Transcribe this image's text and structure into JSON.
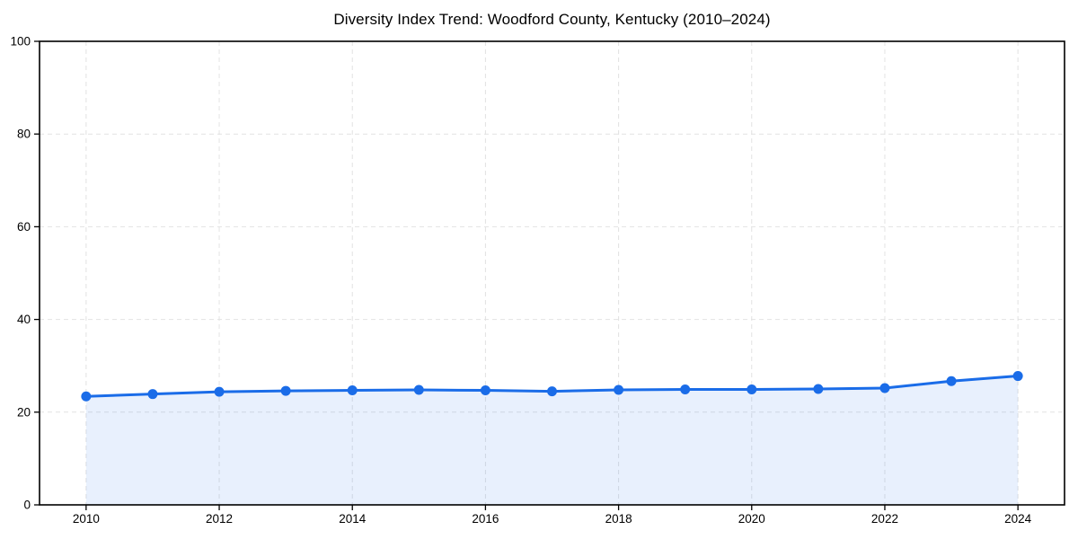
{
  "chart_data": {
    "type": "area",
    "title": "Diversity Index Trend: Woodford County, Kentucky (2010–2024)",
    "series_name": "Diversity Index",
    "x": [
      2010,
      2011,
      2012,
      2013,
      2014,
      2015,
      2016,
      2017,
      2018,
      2019,
      2020,
      2021,
      2022,
      2023,
      2024
    ],
    "values": [
      23.4,
      23.9,
      24.4,
      24.6,
      24.7,
      24.8,
      24.7,
      24.5,
      24.8,
      24.9,
      24.9,
      25.0,
      25.2,
      26.7,
      27.8
    ],
    "xlabel": "",
    "ylabel": "",
    "xlim": [
      2009.3,
      2024.7
    ],
    "ylim": [
      0,
      100
    ],
    "x_ticks": [
      2010,
      2012,
      2014,
      2016,
      2018,
      2020,
      2022,
      2024
    ],
    "y_ticks": [
      0,
      20,
      40,
      60,
      80,
      100
    ],
    "grid": true,
    "grid_style": "dashed",
    "legend_position": "none",
    "colors": {
      "line": "#1a6ce8",
      "marker": "#1a6ce8",
      "area_fill_rgba": "rgba(26,108,232,0.10)",
      "grid": "#e2e2e2",
      "axis": "#000000",
      "text": "#000000",
      "background": "#ffffff"
    }
  }
}
